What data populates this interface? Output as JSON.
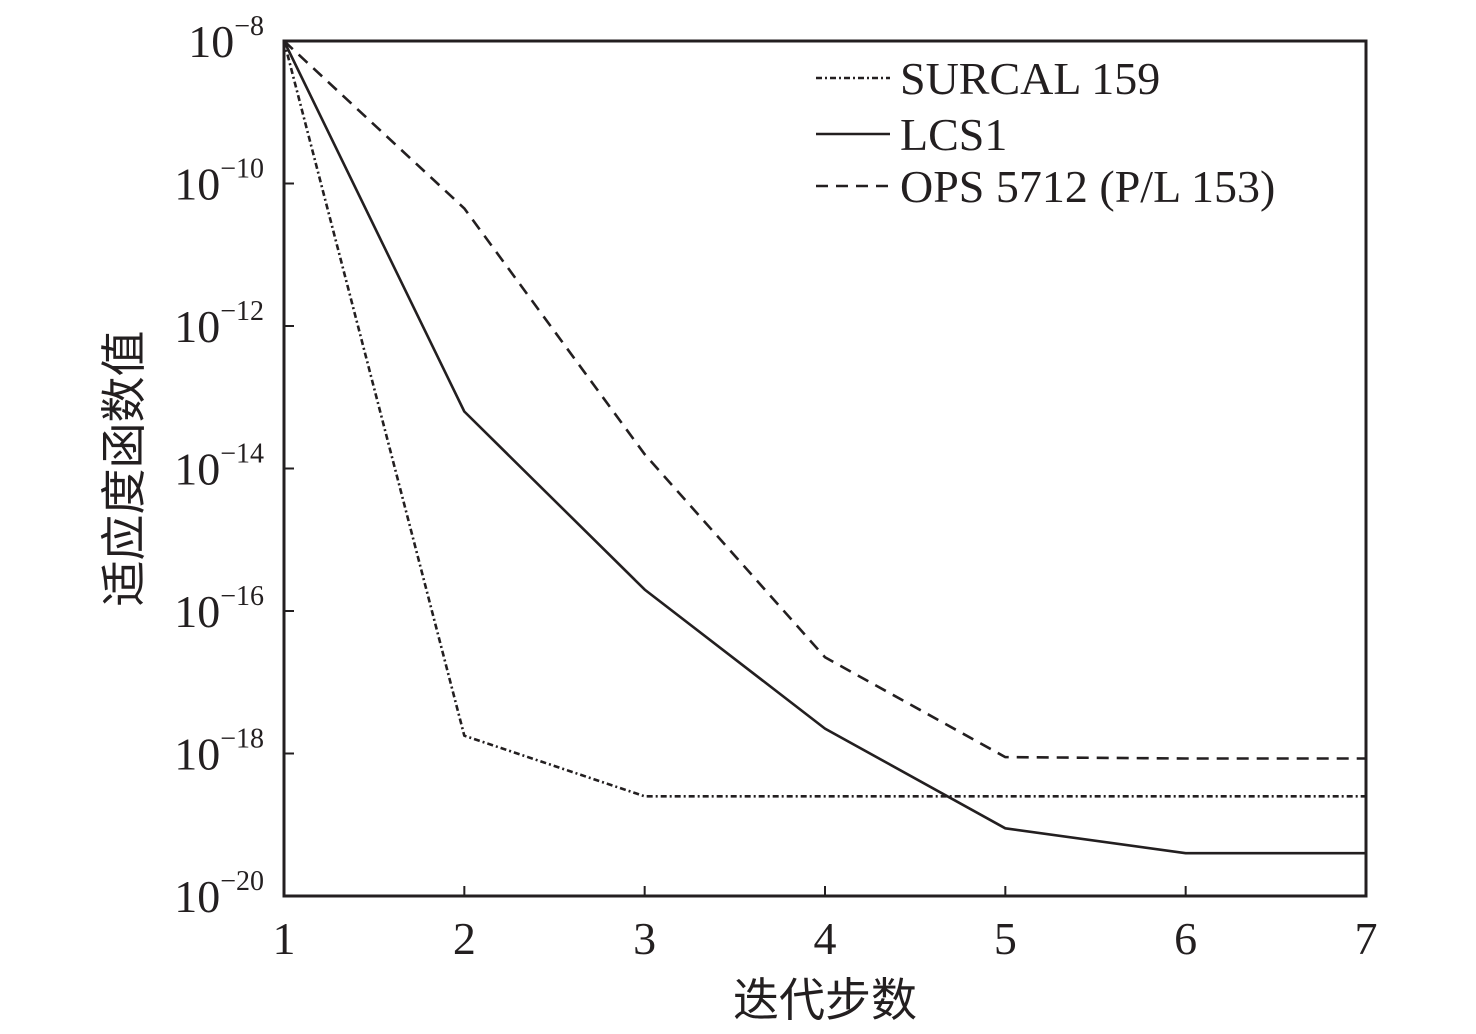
{
  "chart_data": {
    "type": "line",
    "title": "",
    "xlabel": "迭代步数",
    "ylabel": "适应度函数值",
    "xlim": [
      1,
      7
    ],
    "ylim_exponent": [
      -20,
      -8
    ],
    "yscale": "log",
    "grid": false,
    "legend_position": "top-right",
    "x_ticks": [
      "1",
      "2",
      "3",
      "4",
      "5",
      "6",
      "7"
    ],
    "y_ticks": [
      {
        "exp": -8,
        "base": "10",
        "sup": "−8"
      },
      {
        "exp": -10,
        "base": "10",
        "sup": "−10"
      },
      {
        "exp": -12,
        "base": "10",
        "sup": "−12"
      },
      {
        "exp": -14,
        "base": "10",
        "sup": "−14"
      },
      {
        "exp": -16,
        "base": "10",
        "sup": "−16"
      },
      {
        "exp": -18,
        "base": "10",
        "sup": "−18"
      },
      {
        "exp": -20,
        "base": "10",
        "sup": "−20"
      }
    ],
    "x": [
      1,
      2,
      3,
      4,
      5,
      6,
      7
    ],
    "series": [
      {
        "name": "SURCAL 159",
        "style": "dash-dot",
        "log10_values": [
          -8,
          -17.75,
          -18.6,
          -18.6,
          -18.6,
          -18.6,
          -18.6
        ]
      },
      {
        "name": "LCS1",
        "style": "solid",
        "log10_values": [
          -8,
          -13.2,
          -15.7,
          -17.65,
          -19.05,
          -19.4,
          -19.4
        ]
      },
      {
        "name": "OPS 5712 (P/L 153)",
        "style": "dashed",
        "log10_values": [
          -8,
          -10.35,
          -13.8,
          -16.65,
          -18.05,
          -18.07,
          -18.07
        ]
      }
    ],
    "colors": {
      "line": "#231f20",
      "axis": "#231f20",
      "background": "#ffffff"
    }
  }
}
